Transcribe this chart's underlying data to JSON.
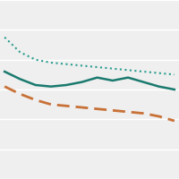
{
  "x": [
    0,
    1,
    2,
    3,
    4,
    5,
    6,
    7,
    8,
    9,
    10,
    11
  ],
  "dotted_line": [
    1.95,
    1.85,
    1.8,
    1.78,
    1.77,
    1.76,
    1.75,
    1.74,
    1.73,
    1.72,
    1.71,
    1.7
  ],
  "solid_line": [
    1.72,
    1.67,
    1.63,
    1.62,
    1.63,
    1.65,
    1.68,
    1.66,
    1.68,
    1.65,
    1.62,
    1.6
  ],
  "dashed_line": [
    1.62,
    1.57,
    1.53,
    1.5,
    1.49,
    1.48,
    1.47,
    1.46,
    1.45,
    1.44,
    1.42,
    1.39
  ],
  "dotted_color": "#2a9d8f",
  "solid_color": "#1a7a6e",
  "dashed_color": "#c87137",
  "bg_color": "#efefef",
  "grid_color": "#ffffff",
  "ylim": [
    1.0,
    2.2
  ],
  "xlim": [
    -0.3,
    11.3
  ],
  "yticks": [
    1.0,
    1.2,
    1.4,
    1.6,
    1.8,
    2.0,
    2.2
  ],
  "figsize": [
    2.0,
    2.0
  ],
  "dpi": 100
}
